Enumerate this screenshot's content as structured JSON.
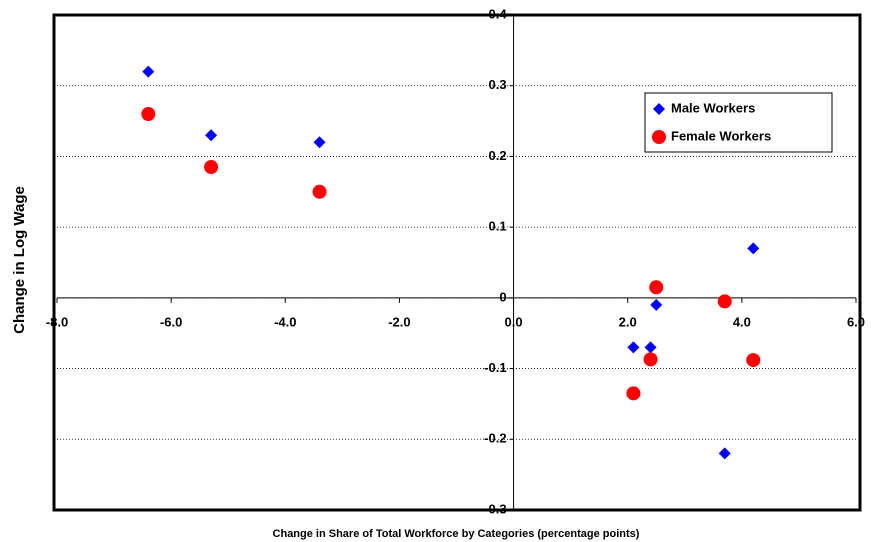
{
  "chart_data": {
    "type": "scatter",
    "x_label": "Change in Share of Total Workforce by Categories (percentage points)",
    "y_label": "Change in Log Wage",
    "x": [
      -6.4,
      -5.3,
      -3.4,
      2.1,
      2.4,
      2.5,
      3.7,
      4.2
    ],
    "series": [
      {
        "name": "Male Workers",
        "color": "#0000ff",
        "marker": "diamond",
        "values": [
          0.32,
          0.23,
          0.22,
          -0.07,
          -0.07,
          -0.01,
          -0.22,
          0.07
        ]
      },
      {
        "name": "Female Workers",
        "color": "#ff0000",
        "marker": "circle",
        "values": [
          0.26,
          0.185,
          0.15,
          -0.135,
          -0.087,
          0.015,
          -0.005,
          -0.088
        ]
      }
    ],
    "xlim": [
      -8,
      6
    ],
    "ylim": [
      -0.3,
      0.4
    ],
    "xticks": [
      {
        "value": -8,
        "label": "-8.0"
      },
      {
        "value": -6,
        "label": "-6.0"
      },
      {
        "value": -4,
        "label": "-4.0"
      },
      {
        "value": -2,
        "label": "-2.0"
      },
      {
        "value": 0,
        "label": "0.0"
      },
      {
        "value": 2,
        "label": "2.0"
      },
      {
        "value": 4,
        "label": "4.0"
      },
      {
        "value": 6,
        "label": "6.0"
      }
    ],
    "yticks": [
      -0.3,
      -0.2,
      -0.1,
      0,
      0.1,
      0.2,
      0.3,
      0.4
    ],
    "grid": true,
    "legend_position": "upper right"
  }
}
